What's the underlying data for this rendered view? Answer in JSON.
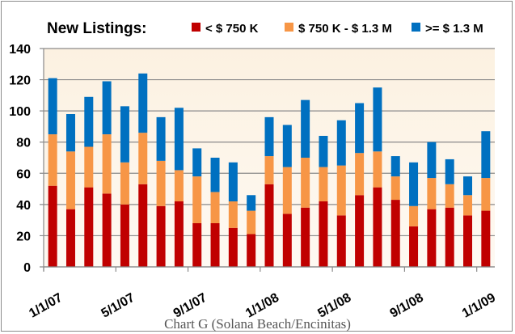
{
  "caption": "Chart G (Solana Beach/Encinitas)",
  "chart_data": {
    "type": "bar",
    "stacked": true,
    "title": "New Listings:",
    "xlabel": "",
    "ylabel": "",
    "ylim": [
      0,
      140
    ],
    "yticks": [
      "0",
      "20",
      "40",
      "60",
      "80",
      "100",
      "120",
      "140"
    ],
    "ytick_values": [
      0,
      20,
      40,
      60,
      80,
      100,
      120,
      140
    ],
    "grid": true,
    "legend_position": "top",
    "xtick_labels": [
      "1/1/07",
      "5/1/07",
      "9/1/07",
      "1/1/08",
      "5/1/08",
      "9/1/08",
      "1/1/09"
    ],
    "xtick_category_index": [
      0,
      4,
      8,
      12,
      16,
      20,
      24
    ],
    "categories": [
      "Jan 07",
      "Feb 07",
      "Mar 07",
      "Apr 07",
      "May 07",
      "Jun 07",
      "Jul 07",
      "Aug 07",
      "Sep 07",
      "Oct 07",
      "Nov 07",
      "Dec 07",
      "Jan 08",
      "Feb 08",
      "Mar 08",
      "Apr 08",
      "May 08",
      "Jun 08",
      "Jul 08",
      "Aug 08",
      "Sep 08",
      "Oct 08",
      "Nov 08",
      "Dec 08",
      "Jan 09"
    ],
    "series": [
      {
        "name": "< $ 750 K",
        "color": "#C00000",
        "values": [
          52,
          37,
          51,
          47,
          40,
          53,
          39,
          42,
          28,
          28,
          25,
          21,
          53,
          34,
          38,
          42,
          33,
          46,
          51,
          43,
          26,
          37,
          38,
          33,
          36
        ]
      },
      {
        "name": "$ 750 K - $ 1.3 M",
        "color": "#F79646",
        "values": [
          33,
          37,
          26,
          38,
          27,
          33,
          29,
          20,
          30,
          20,
          17,
          15,
          18,
          30,
          32,
          22,
          32,
          27,
          23,
          15,
          13,
          20,
          15,
          13,
          21
        ]
      },
      {
        "name": ">= $ 1.3 M",
        "color": "#0070C0",
        "values": [
          36,
          24,
          32,
          34,
          36,
          38,
          28,
          40,
          18,
          22,
          25,
          10,
          25,
          27,
          37,
          20,
          29,
          32,
          41,
          13,
          28,
          23,
          16,
          12,
          30
        ]
      }
    ]
  }
}
